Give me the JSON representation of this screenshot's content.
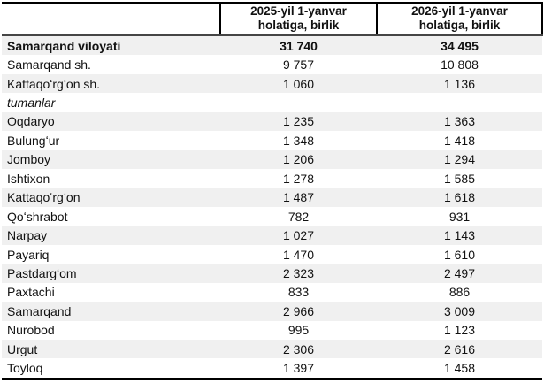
{
  "colors": {
    "background": "#ffffff",
    "row_alt_bg": "#f0f0f0",
    "outer_border": "#000000",
    "header_rule": "#454545",
    "text": "#111111"
  },
  "table": {
    "columns": [
      {
        "label": ""
      },
      {
        "label": "2025-yil 1-yanvar holatiga, birlik",
        "line1": "2025-yil 1-yanvar",
        "line2": "holatiga, birlik"
      },
      {
        "label": "2026-yil 1-yanvar holatiga, birlik",
        "line1": "2026-yil 1-yanvar",
        "line2": "holatiga, birlik"
      }
    ],
    "rows": [
      {
        "name": "Samarqand viloyati",
        "v2025": "31 740",
        "v2026": "34 495",
        "style": "bold"
      },
      {
        "name": "Samarqand sh.",
        "v2025": "9 757",
        "v2026": "10 808",
        "style": ""
      },
      {
        "name": "Kattaqoʻrgʻon sh.",
        "v2025": "1 060",
        "v2026": "1 136",
        "style": ""
      },
      {
        "name": "tumanlar",
        "v2025": "",
        "v2026": "",
        "style": "italic"
      },
      {
        "name": "Oqdaryo",
        "v2025": "1 235",
        "v2026": "1 363",
        "style": ""
      },
      {
        "name": "Bulungʻur",
        "v2025": "1 348",
        "v2026": "1 418",
        "style": ""
      },
      {
        "name": "Jomboy",
        "v2025": "1 206",
        "v2026": "1 294",
        "style": ""
      },
      {
        "name": "Ishtixon",
        "v2025": "1 278",
        "v2026": "1 585",
        "style": ""
      },
      {
        "name": "Kattaqoʻrgʻon",
        "v2025": "1 487",
        "v2026": "1 618",
        "style": ""
      },
      {
        "name": "Qoʻshrabot",
        "v2025": "782",
        "v2026": "931",
        "style": ""
      },
      {
        "name": "Narpay",
        "v2025": "1 027",
        "v2026": "1 143",
        "style": ""
      },
      {
        "name": "Payariq",
        "v2025": "1 470",
        "v2026": "1 610",
        "style": ""
      },
      {
        "name": "Pastdargʻom",
        "v2025": "2 323",
        "v2026": "2 497",
        "style": ""
      },
      {
        "name": "Paxtachi",
        "v2025": "833",
        "v2026": "886",
        "style": ""
      },
      {
        "name": "Samarqand",
        "v2025": "2 966",
        "v2026": "3 009",
        "style": ""
      },
      {
        "name": "Nurobod",
        "v2025": "995",
        "v2026": "1 123",
        "style": ""
      },
      {
        "name": "Urgut",
        "v2025": "2 306",
        "v2026": "2 616",
        "style": ""
      },
      {
        "name": "Toyloq",
        "v2025": "1 397",
        "v2026": "1 458",
        "style": ""
      }
    ]
  },
  "chart_data": {
    "type": "table",
    "title": "",
    "categories": [
      "Samarqand viloyati",
      "Samarqand sh.",
      "Kattaqoʻrgʻon sh.",
      "tumanlar",
      "Oqdaryo",
      "Bulungʻur",
      "Jomboy",
      "Ishtixon",
      "Kattaqoʻrgʻon",
      "Qoʻshrabot",
      "Narpay",
      "Payariq",
      "Pastdargʻom",
      "Paxtachi",
      "Samarqand",
      "Nurobod",
      "Urgut",
      "Toyloq"
    ],
    "series": [
      {
        "name": "2025-yil 1-yanvar holatiga, birlik",
        "values": [
          31740,
          9757,
          1060,
          null,
          1235,
          1348,
          1206,
          1278,
          1487,
          782,
          1027,
          1470,
          2323,
          833,
          2966,
          995,
          2306,
          1397
        ]
      },
      {
        "name": "2026-yil 1-yanvar holatiga, birlik",
        "values": [
          34495,
          10808,
          1136,
          null,
          1363,
          1418,
          1294,
          1585,
          1618,
          931,
          1143,
          1610,
          2497,
          886,
          3009,
          1123,
          2616,
          1458
        ]
      }
    ]
  }
}
